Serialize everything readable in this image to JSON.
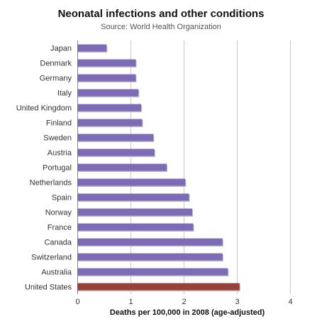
{
  "chart_data": {
    "type": "bar",
    "orientation": "horizontal",
    "title": "Neonatal infections and other conditions",
    "subtitle": "Source: World Health Organization",
    "xlabel": "Deaths per 100,000 in 2008 (age-adjusted)",
    "ylabel": "",
    "xlim": [
      0,
      4
    ],
    "xticks": [
      "0",
      "1",
      "2",
      "3",
      "4"
    ],
    "grid": true,
    "legend": "none",
    "categories": [
      "Japan",
      "Denmark",
      "Germany",
      "Italy",
      "United Kingdom",
      "Finland",
      "Sweden",
      "Austria",
      "Portugal",
      "Netherlands",
      "Spain",
      "Norway",
      "France",
      "Canada",
      "Switzerland",
      "Australia",
      "United States"
    ],
    "values": [
      0.55,
      1.1,
      1.1,
      1.15,
      1.2,
      1.22,
      1.43,
      1.45,
      1.68,
      2.03,
      2.1,
      2.16,
      2.18,
      2.73,
      2.73,
      2.83,
      3.05
    ],
    "colors": {
      "default": "#7d6bb7",
      "highlight": "#9b3f3a",
      "highlight_category": "United States"
    }
  }
}
